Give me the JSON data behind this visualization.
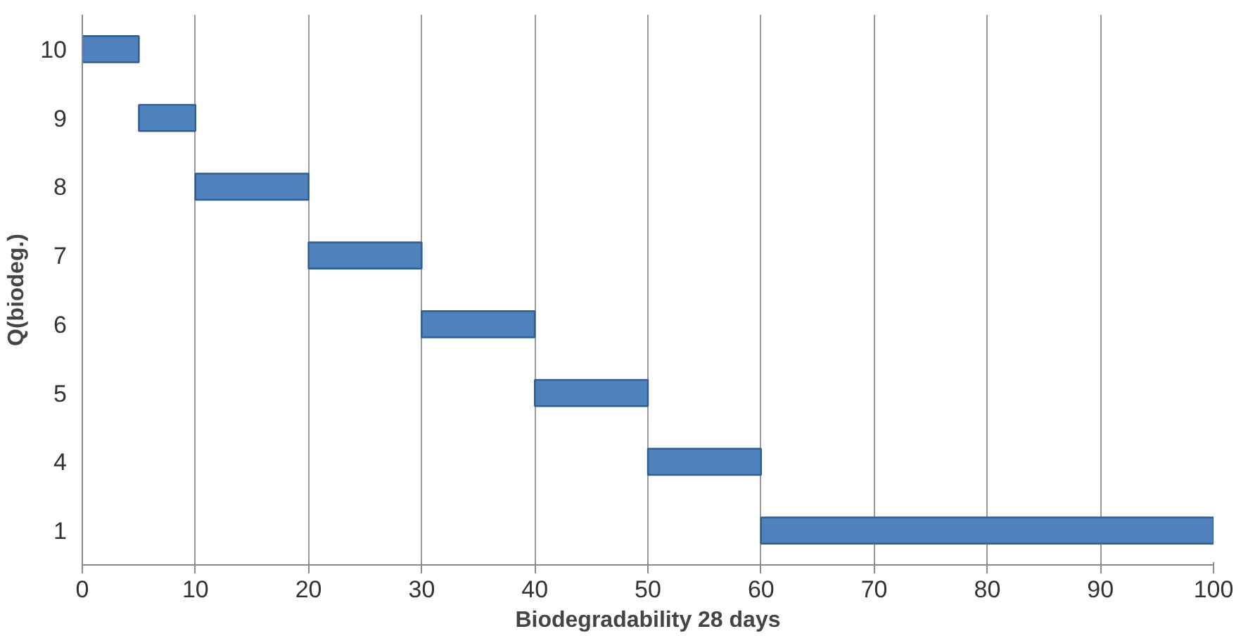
{
  "chart_data": {
    "type": "bar",
    "orientation": "horizontal",
    "xlabel": "Biodegradability 28 days",
    "ylabel": "Q(biodeg.)",
    "categories": [
      "10",
      "9",
      "8",
      "7",
      "6",
      "5",
      "4",
      "1"
    ],
    "base": [
      0,
      5,
      10,
      20,
      30,
      40,
      50,
      60
    ],
    "values": [
      5,
      5,
      10,
      10,
      10,
      10,
      10,
      40
    ],
    "color": "#4f81bd",
    "xlim": [
      0,
      100
    ],
    "xticks": [
      0,
      10,
      20,
      30,
      40,
      50,
      60,
      70,
      80,
      90,
      100
    ],
    "grid": "x"
  }
}
